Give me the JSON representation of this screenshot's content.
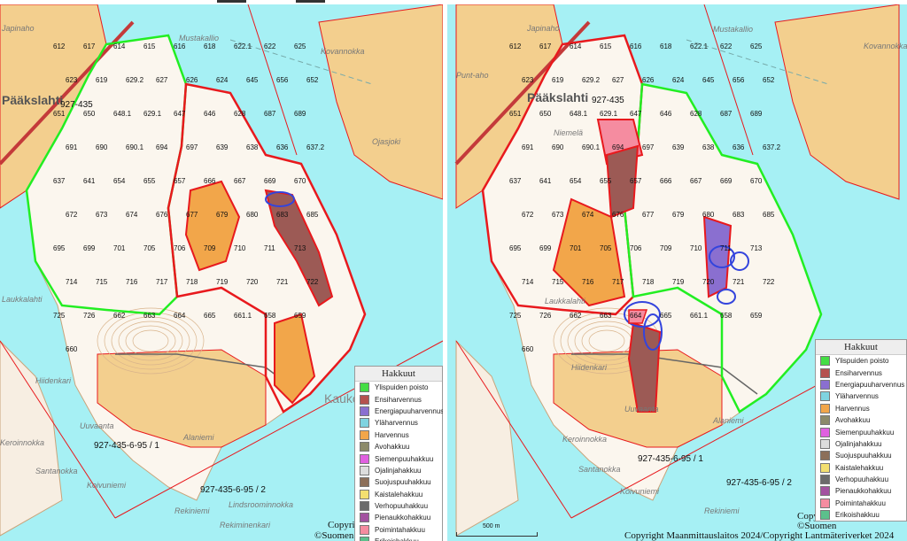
{
  "legend": {
    "title": "Hakkuut",
    "items": [
      {
        "label": "Ylispuiden poisto",
        "color": "#44dd44"
      },
      {
        "label": "Ensiharvennus",
        "color": "#b5524f"
      },
      {
        "label": "Energiapuuharvennus",
        "color": "#8a6fd0"
      },
      {
        "label": "Yläharvennus",
        "color": "#7fd3e0"
      },
      {
        "label": "Harvennus",
        "color": "#f2a64a"
      },
      {
        "label": "Avohakkuu",
        "color": "#8c8a6a"
      },
      {
        "label": "Siemenpuuhakkuu",
        "color": "#e060e0"
      },
      {
        "label": "Ojalinjahakkuu",
        "color": "#dddddd"
      },
      {
        "label": "Suojuspuuhakkuu",
        "color": "#8c6f5a"
      },
      {
        "label": "Kaistalehakkuu",
        "color": "#f3df70"
      },
      {
        "label": "Verhopuuhakkuu",
        "color": "#6b6b6b"
      },
      {
        "label": "Pienaukkohakkuu",
        "color": "#a352a0"
      },
      {
        "label": "Poimintahakkuu",
        "color": "#f58ca0"
      },
      {
        "label": "Erikoishakkuu",
        "color": "#5cc08c"
      }
    ]
  },
  "colors": {
    "water": "#a6f0f4",
    "land_field": "#f3cf8e",
    "island": "#fbf6ee",
    "boundary_red": "#e8191d",
    "boundary_green": "#22ee22",
    "ellipse_blue": "#3344dd"
  },
  "places": {
    "japinaho": "Japinaho",
    "mustakallio": "Mustakallio",
    "kovannokka": "Kovannokka",
    "paakslahti": "Pääkslahti",
    "punt_aho": "Punt-aho",
    "niemela": "Niemelä",
    "hiidenkari": "Hiidenkari",
    "uuvaanta": "Uuvaanta",
    "alaniemi": "Alaniemi",
    "santanokka": "Santanokka",
    "koivuniemi": "Koivuniemi",
    "rekiniemi": "Rekiniemi",
    "keroinnokka": "Keroinnokka",
    "laukkalahti": "Laukkalahti",
    "kaukonen": "Kauko",
    "lindsroominnokka": "Lindsroominnokka",
    "rekiminenkari": "Rekiminenkari",
    "ojasjoki": "Ojasjoki"
  },
  "parcels": {
    "p1": "927-435-6-95 / 1",
    "p2": "927-435-6-95 / 2",
    "p0": "927-435"
  },
  "stands": [
    "612",
    "617",
    "614",
    "615",
    "616",
    "618",
    "622.1",
    "622",
    "625",
    "623",
    "619",
    "629.2",
    "627",
    "626",
    "624",
    "645",
    "656",
    "652",
    "651",
    "650",
    "648.1",
    "629.1",
    "647",
    "646",
    "628",
    "687",
    "689",
    "691",
    "690",
    "690.1",
    "694",
    "697",
    "639",
    "638",
    "636",
    "637.2",
    "637",
    "641",
    "654",
    "655",
    "657",
    "666",
    "667",
    "669",
    "670",
    "672",
    "673",
    "674",
    "676",
    "677",
    "679",
    "680",
    "683",
    "685",
    "695",
    "699",
    "701",
    "705",
    "706",
    "709",
    "710",
    "711",
    "713",
    "714",
    "715",
    "716",
    "717",
    "718",
    "719",
    "720",
    "721",
    "722",
    "725",
    "726",
    "662",
    "663",
    "664",
    "665",
    "661.1",
    "658",
    "659",
    "660"
  ],
  "copyright": {
    "left": "Copyright",
    "left2": "©Suomen",
    "right": "Copyright Maanmittauslaitos 2024/Copyright Lantmäteriverket 2024",
    "right2": "©Suomen",
    "right3": "Copyr",
    "scale": "500 m"
  }
}
